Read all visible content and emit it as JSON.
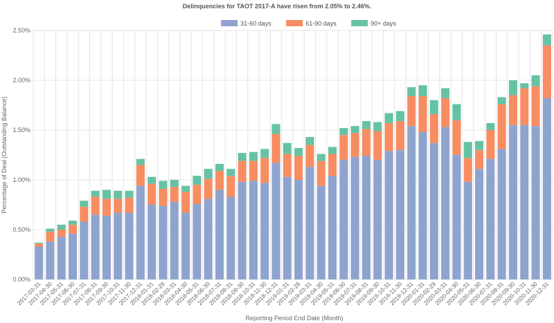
{
  "chart_data": {
    "type": "bar",
    "stacked": true,
    "title": "Delinquencies for TAOT 2017-A have risen from 2.05% to 2.46%.",
    "xlabel": "Reporting Period End Date (Month)",
    "ylabel": "Percentage of Deal (Outstanding Balance)",
    "ylim": [
      0,
      2.5
    ],
    "yticks": [
      "0.00%",
      "0.50%",
      "1.00%",
      "1.50%",
      "2.00%",
      "2.50%"
    ],
    "grid": true,
    "legend_position": "top-center",
    "categories": [
      "2017-03-31",
      "2017-04-30",
      "2017-05-31",
      "2017-06-30",
      "2017-07-31",
      "2017-08-31",
      "2017-09-30",
      "2017-10-31",
      "2017-11-30",
      "2017-12-31",
      "2018-01-31",
      "2018-02-28",
      "2018-03-31",
      "2018-04-30",
      "2018-05-31",
      "2018-06-30",
      "2018-07-31",
      "2018-08-31",
      "2018-09-30",
      "2018-10-31",
      "2018-11-30",
      "2018-12-31",
      "2019-01-31",
      "2019-02-28",
      "2019-03-31",
      "2019-04-30",
      "2019-05-31",
      "2019-06-30",
      "2019-07-31",
      "2019-08-31",
      "2019-09-30",
      "2019-10-31",
      "2019-11-30",
      "2019-12-31",
      "2020-01-31",
      "2020-02-29",
      "2020-03-31",
      "2020-04-30",
      "2020-05-31",
      "2020-06-30",
      "2020-07-31",
      "2020-08-31",
      "2020-09-30",
      "2020-10-31",
      "2020-11-30",
      "2020-12-31"
    ],
    "series": [
      {
        "name": "31-60 days",
        "color": "#8fa3cf",
        "values": [
          0.33,
          0.38,
          0.43,
          0.46,
          0.58,
          0.65,
          0.64,
          0.67,
          0.67,
          0.94,
          0.75,
          0.74,
          0.78,
          0.67,
          0.76,
          0.81,
          0.9,
          0.83,
          0.98,
          0.99,
          0.97,
          1.17,
          1.03,
          1.0,
          1.13,
          0.94,
          1.04,
          1.2,
          1.23,
          1.24,
          1.2,
          1.29,
          1.3,
          1.54,
          1.48,
          1.37,
          1.53,
          1.25,
          0.98,
          1.11,
          1.21,
          1.31,
          1.55,
          1.55,
          1.54,
          1.82
        ]
      },
      {
        "name": "61-90 days",
        "color": "#f88d62",
        "values": [
          0.03,
          0.1,
          0.07,
          0.09,
          0.15,
          0.18,
          0.17,
          0.14,
          0.15,
          0.21,
          0.21,
          0.17,
          0.15,
          0.21,
          0.19,
          0.2,
          0.19,
          0.21,
          0.21,
          0.2,
          0.25,
          0.29,
          0.23,
          0.24,
          0.22,
          0.25,
          0.22,
          0.25,
          0.24,
          0.27,
          0.29,
          0.28,
          0.29,
          0.3,
          0.36,
          0.29,
          0.29,
          0.35,
          0.24,
          0.19,
          0.29,
          0.45,
          0.3,
          0.37,
          0.4,
          0.53
        ]
      },
      {
        "name": "90+ days",
        "color": "#66c2a4",
        "values": [
          0.01,
          0.03,
          0.05,
          0.04,
          0.06,
          0.06,
          0.09,
          0.08,
          0.07,
          0.06,
          0.07,
          0.08,
          0.07,
          0.06,
          0.09,
          0.1,
          0.07,
          0.07,
          0.08,
          0.09,
          0.09,
          0.1,
          0.11,
          0.08,
          0.08,
          0.07,
          0.07,
          0.07,
          0.07,
          0.08,
          0.09,
          0.1,
          0.1,
          0.09,
          0.11,
          0.14,
          0.1,
          0.16,
          0.16,
          0.09,
          0.07,
          0.07,
          0.15,
          0.05,
          0.11,
          0.11
        ]
      }
    ]
  }
}
